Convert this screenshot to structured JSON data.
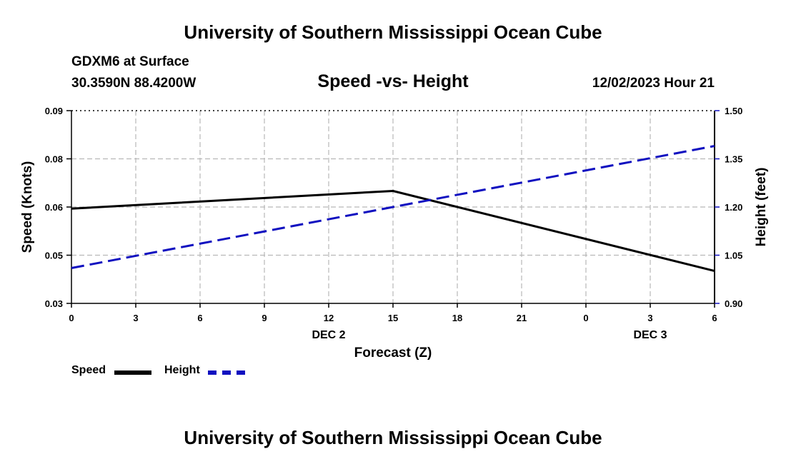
{
  "header": {
    "main_title": "University of Southern Mississippi Ocean Cube",
    "station": "GDXM6 at Surface",
    "coordinates": "30.3590N  88.4200W",
    "chart_title": "Speed -vs- Height",
    "date_hour": "12/02/2023 Hour 21"
  },
  "footer": {
    "title": "University of Southern Mississippi Ocean Cube"
  },
  "legend": {
    "speed_label": "Speed",
    "height_label": "Height"
  },
  "colors": {
    "speed": "#000000",
    "height": "#1010c0",
    "grid": "#b8b8b8"
  },
  "chart_data": {
    "type": "line",
    "title": "Speed -vs- Height",
    "xlabel": "Forecast (Z)",
    "ylabel_left": "Speed (Knots)",
    "ylabel_right": "Height (feet)",
    "x_hours": [
      0,
      3,
      6,
      9,
      12,
      15,
      18,
      21,
      24,
      27,
      30
    ],
    "x_tick_labels": [
      "0",
      "3",
      "6",
      "9",
      "12",
      "15",
      "18",
      "21",
      "0",
      "3",
      "6"
    ],
    "day_labels": [
      {
        "hour": 12,
        "label": "DEC 2"
      },
      {
        "hour": 27,
        "label": "DEC 3"
      }
    ],
    "ylim_left": [
      0.03,
      0.09
    ],
    "yticks_left": [
      0.03,
      0.045,
      0.06,
      0.075,
      0.09
    ],
    "yticks_left_labels": [
      "0.03",
      "0.05",
      "0.06",
      "0.08",
      "0.09"
    ],
    "ylim_right": [
      0.9,
      1.5
    ],
    "yticks_right": [
      0.9,
      1.05,
      1.2,
      1.35,
      1.5
    ],
    "yticks_right_labels": [
      "0.90",
      "1.05",
      "1.20",
      "1.35",
      "1.50"
    ],
    "grid": true,
    "legend_position": "bottom-left",
    "series": [
      {
        "name": "Speed",
        "axis": "left",
        "style": "solid",
        "x": [
          0,
          15,
          30
        ],
        "values": [
          0.0595,
          0.065,
          0.0401
        ]
      },
      {
        "name": "Height",
        "axis": "right",
        "style": "dashed",
        "x": [
          0,
          30
        ],
        "values": [
          1.01,
          1.39
        ]
      }
    ]
  }
}
